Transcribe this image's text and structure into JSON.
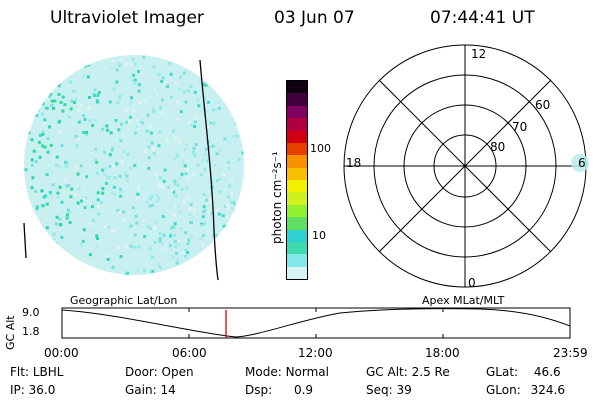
{
  "header": {
    "title": "Ultraviolet Imager",
    "date": "03 Jun 07",
    "time": "07:44:41 UT"
  },
  "colorbar": {
    "label": "photon cm⁻²s⁻¹",
    "ticks": [
      {
        "value": 100,
        "label": "100"
      },
      {
        "value": 10,
        "label": "10"
      }
    ],
    "colors": [
      "#d8f4f4",
      "#80e8e8",
      "#40d8b0",
      "#30d0d0",
      "#60e060",
      "#90f030",
      "#d0f020",
      "#f0f000",
      "#f8c000",
      "#f89000",
      "#e84000",
      "#d00010",
      "#b00040",
      "#800060",
      "#400040",
      "#100010"
    ]
  },
  "polar": {
    "labels": {
      "top": "12",
      "bottom": "0",
      "left": "18",
      "right": "6"
    },
    "rings": [
      {
        "lat": 80,
        "label": "80"
      },
      {
        "lat": 70,
        "label": "70"
      },
      {
        "lat": 60,
        "label": "60"
      }
    ]
  },
  "timeline": {
    "left_title": "Geographic Lat/Lon",
    "right_title": "Apex MLat/MLT",
    "ylabel": "GC Alt",
    "y_ticks": [
      "9.0",
      "1.8"
    ],
    "x_ticks": [
      "00:00",
      "06:00",
      "12:00",
      "18:00",
      "23:59"
    ],
    "current_marker_hour": 7.75
  },
  "footer": {
    "row1": [
      {
        "label": "Flt:",
        "value": "LBHL"
      },
      {
        "label": "Door:",
        "value": "Open"
      },
      {
        "label": "Mode:",
        "value": "Normal"
      },
      {
        "label": "GC Alt:",
        "value": "2.5 Re"
      },
      {
        "label": "GLat:",
        "value": "46.6"
      }
    ],
    "row2": [
      {
        "label": "IP:",
        "value": "36.0"
      },
      {
        "label": "Gain:",
        "value": "14"
      },
      {
        "label": "Dsp:",
        "value": "0.9"
      },
      {
        "label": "Seq:",
        "value": "39"
      },
      {
        "label": "GLon:",
        "value": "324.6"
      }
    ]
  }
}
